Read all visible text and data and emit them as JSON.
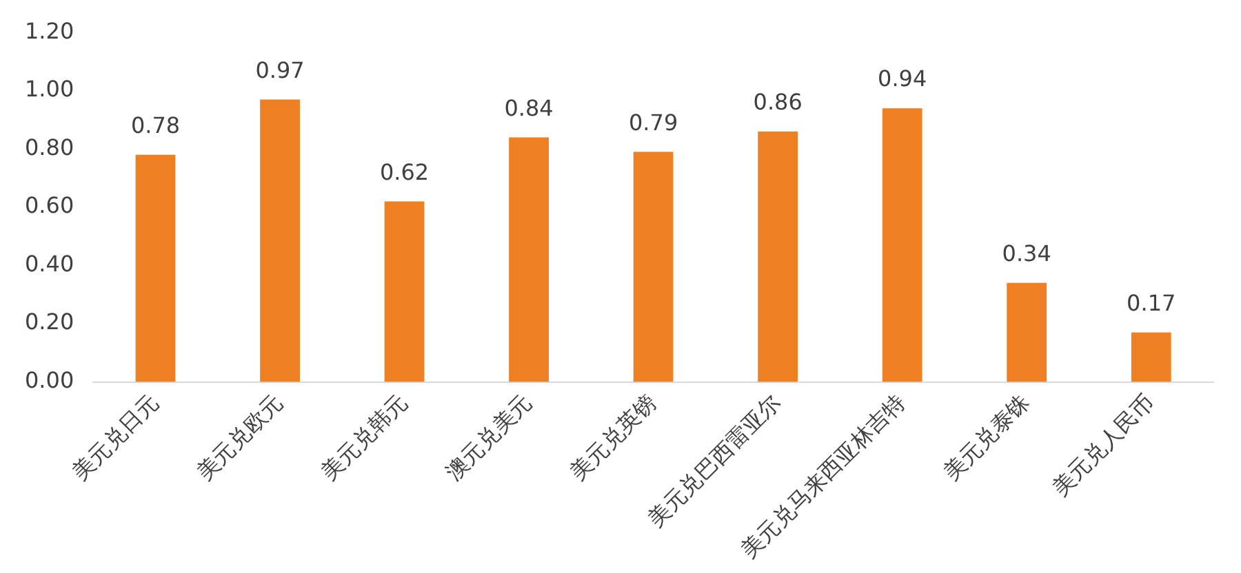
{
  "chart_data": {
    "type": "bar",
    "categories": [
      "美元兑日元",
      "美元兑欧元",
      "美元兑韩元",
      "澳元兑美元",
      "美元兑英镑",
      "美元兑巴西雷亚尔",
      "美元兑马来西亚林吉特",
      "美元兑泰铢",
      "美元兑人民币"
    ],
    "values": [
      0.78,
      0.97,
      0.62,
      0.84,
      0.79,
      0.86,
      0.94,
      0.34,
      0.17
    ],
    "color": "#ee7f22",
    "ylim": [
      0,
      1.2
    ],
    "yticks": [
      {
        "value": 0,
        "label": "0.00"
      },
      {
        "value": 0.2,
        "label": "0.20"
      },
      {
        "value": 0.4,
        "label": "0.40"
      },
      {
        "value": 0.6,
        "label": "0.60"
      },
      {
        "value": 0.8,
        "label": "0.80"
      },
      {
        "value": 1,
        "label": "1.00"
      },
      {
        "value": 1.2,
        "label": "1.20"
      }
    ],
    "grid": false,
    "legend": false,
    "data_labels": true
  }
}
